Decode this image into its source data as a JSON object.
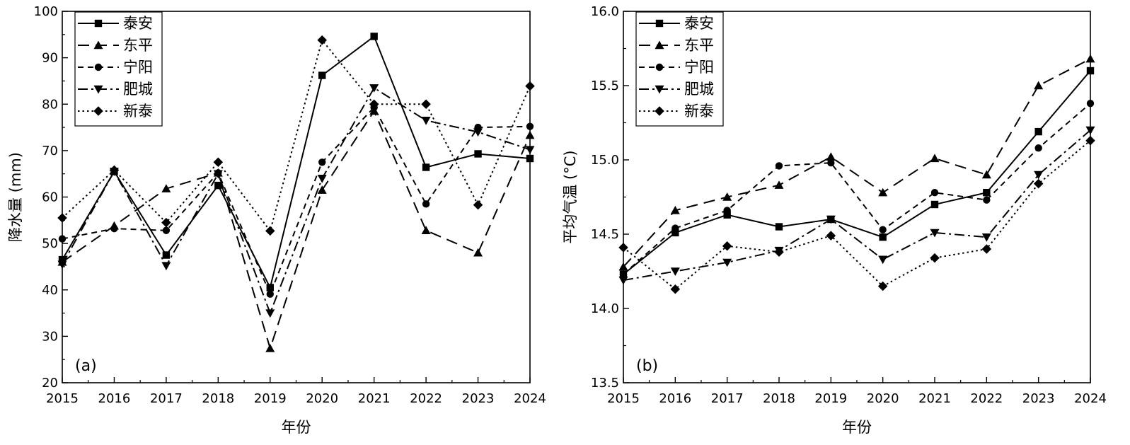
{
  "chart_data": [
    {
      "type": "line",
      "panel_label": "(a)",
      "xlabel": "年份",
      "ylabel": "降水量 (mm)",
      "ylim": [
        20,
        100
      ],
      "yticks": [
        20,
        30,
        40,
        50,
        60,
        70,
        80,
        90,
        100
      ],
      "y_tick_labels": [
        "20",
        "30",
        "40",
        "50",
        "60",
        "70",
        "80",
        "90",
        "100"
      ],
      "x": [
        "2015",
        "2016",
        "2017",
        "2018",
        "2019",
        "2020",
        "2021",
        "2022",
        "2023",
        "2024"
      ],
      "legend_position": "top-left",
      "series": [
        {
          "name": "泰安",
          "marker": "square",
          "dash": "solid",
          "values": [
            46.5,
            65.5,
            47.5,
            62.5,
            40.5,
            86.2,
            94.6,
            66.4,
            69.3,
            68.3
          ]
        },
        {
          "name": "东平",
          "marker": "triangle-up",
          "dash": "long-dash",
          "values": [
            46.0,
            53.8,
            61.8,
            65.2,
            27.4,
            61.5,
            78.5,
            52.8,
            48.0,
            73.3
          ]
        },
        {
          "name": "宁阳",
          "marker": "circle",
          "dash": "short-dash",
          "values": [
            51.0,
            53.2,
            52.8,
            65.2,
            39.1,
            67.5,
            79.3,
            58.5,
            75.0,
            75.2
          ]
        },
        {
          "name": "肥城",
          "marker": "triangle-down",
          "dash": "dash-dot",
          "values": [
            45.5,
            65.5,
            45.2,
            65.0,
            35.0,
            64.0,
            83.5,
            76.5,
            74.0,
            70.2
          ]
        },
        {
          "name": "新泰",
          "marker": "diamond",
          "dash": "dotted",
          "values": [
            55.5,
            65.8,
            54.5,
            67.5,
            52.7,
            93.8,
            80.0,
            80.0,
            58.3,
            83.9
          ]
        }
      ]
    },
    {
      "type": "line",
      "panel_label": "(b)",
      "xlabel": "年份",
      "ylabel": "平均气温 (°C)",
      "ylim": [
        13.5,
        16.0
      ],
      "yticks": [
        13.5,
        14.0,
        14.5,
        15.0,
        15.5,
        16.0
      ],
      "y_tick_labels": [
        "13.5",
        "14.0",
        "14.5",
        "15.0",
        "15.5",
        "16.0"
      ],
      "x": [
        "2015",
        "2016",
        "2017",
        "2018",
        "2019",
        "2020",
        "2021",
        "2022",
        "2023",
        "2024"
      ],
      "legend_position": "top-left",
      "series": [
        {
          "name": "泰安",
          "marker": "square",
          "dash": "solid",
          "values": [
            14.23,
            14.51,
            14.63,
            14.55,
            14.6,
            14.48,
            14.7,
            14.78,
            15.19,
            15.6
          ]
        },
        {
          "name": "东平",
          "marker": "triangle-up",
          "dash": "long-dash",
          "values": [
            14.28,
            14.66,
            14.75,
            14.83,
            15.02,
            14.78,
            15.01,
            14.9,
            15.5,
            15.68
          ]
        },
        {
          "name": "宁阳",
          "marker": "circle",
          "dash": "short-dash",
          "values": [
            14.23,
            14.54,
            14.66,
            14.96,
            14.98,
            14.53,
            14.78,
            14.73,
            15.08,
            15.38
          ]
        },
        {
          "name": "肥城",
          "marker": "triangle-down",
          "dash": "dash-dot",
          "values": [
            14.19,
            14.25,
            14.31,
            14.39,
            14.6,
            14.33,
            14.51,
            14.48,
            14.9,
            15.2
          ]
        },
        {
          "name": "新泰",
          "marker": "diamond",
          "dash": "dotted",
          "values": [
            14.41,
            14.13,
            14.42,
            14.38,
            14.49,
            14.15,
            14.34,
            14.4,
            14.84,
            15.13
          ]
        }
      ]
    }
  ]
}
